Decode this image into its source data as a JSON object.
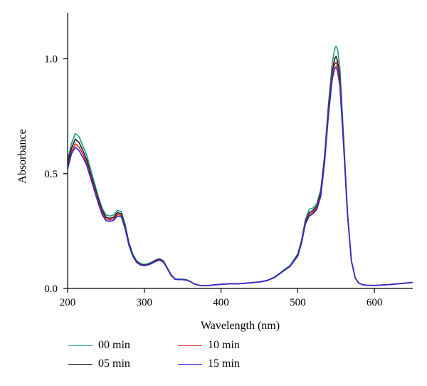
{
  "chart_data": {
    "type": "line",
    "title": "",
    "xlabel": "Wavelength (nm)",
    "ylabel": "Absorbance",
    "xlim": [
      200,
      650
    ],
    "ylim": [
      0,
      1.2
    ],
    "x_ticks": [
      200,
      300,
      400,
      500,
      600
    ],
    "x_tick_labels": [
      "200",
      "300",
      "400",
      "500",
      "600"
    ],
    "y_ticks": [
      0,
      0.5,
      1.0
    ],
    "y_tick_labels": [
      "0.0",
      "0.5",
      "1.0"
    ],
    "grid": false,
    "legend_position": "bottom-left",
    "series": [
      {
        "name": "00 min",
        "color": "#1a9a8a",
        "x": [
          200,
          205,
          210,
          215,
          220,
          225,
          230,
          235,
          240,
          245,
          250,
          255,
          260,
          265,
          270,
          275,
          280,
          285,
          290,
          295,
          300,
          305,
          310,
          315,
          320,
          325,
          330,
          335,
          340,
          345,
          350,
          355,
          360,
          365,
          370,
          375,
          380,
          385,
          390,
          400,
          410,
          420,
          430,
          440,
          450,
          460,
          470,
          480,
          490,
          500,
          505,
          510,
          515,
          520,
          525,
          530,
          535,
          540,
          545,
          548,
          550,
          552,
          555,
          560,
          565,
          570,
          575,
          580,
          585,
          590,
          600,
          610,
          620,
          630,
          640,
          650
        ],
        "values": [
          0.56,
          0.63,
          0.675,
          0.66,
          0.62,
          0.58,
          0.52,
          0.46,
          0.4,
          0.35,
          0.32,
          0.315,
          0.32,
          0.34,
          0.335,
          0.28,
          0.2,
          0.15,
          0.12,
          0.108,
          0.105,
          0.108,
          0.115,
          0.125,
          0.13,
          0.12,
          0.09,
          0.06,
          0.042,
          0.04,
          0.04,
          0.038,
          0.03,
          0.02,
          0.015,
          0.012,
          0.012,
          0.013,
          0.015,
          0.018,
          0.02,
          0.02,
          0.022,
          0.025,
          0.028,
          0.035,
          0.05,
          0.075,
          0.1,
          0.15,
          0.21,
          0.3,
          0.345,
          0.35,
          0.37,
          0.43,
          0.58,
          0.8,
          0.98,
          1.04,
          1.055,
          1.04,
          0.96,
          0.65,
          0.33,
          0.12,
          0.045,
          0.022,
          0.016,
          0.014,
          0.013,
          0.015,
          0.017,
          0.02,
          0.023,
          0.026
        ]
      },
      {
        "name": "05 min",
        "color": "#1a1a1a",
        "x": [
          200,
          205,
          210,
          215,
          220,
          225,
          230,
          235,
          240,
          245,
          250,
          255,
          260,
          265,
          270,
          275,
          280,
          285,
          290,
          295,
          300,
          305,
          310,
          315,
          320,
          325,
          330,
          335,
          340,
          345,
          350,
          355,
          360,
          365,
          370,
          375,
          380,
          385,
          390,
          400,
          410,
          420,
          430,
          440,
          450,
          460,
          470,
          480,
          490,
          500,
          505,
          510,
          515,
          520,
          525,
          530,
          535,
          540,
          545,
          548,
          550,
          552,
          555,
          560,
          565,
          570,
          575,
          580,
          585,
          590,
          600,
          610,
          620,
          630,
          640,
          650
        ],
        "values": [
          0.545,
          0.61,
          0.65,
          0.635,
          0.6,
          0.56,
          0.5,
          0.445,
          0.39,
          0.34,
          0.31,
          0.305,
          0.31,
          0.33,
          0.325,
          0.27,
          0.195,
          0.145,
          0.118,
          0.105,
          0.102,
          0.105,
          0.112,
          0.122,
          0.127,
          0.118,
          0.088,
          0.058,
          0.041,
          0.039,
          0.039,
          0.037,
          0.03,
          0.02,
          0.015,
          0.012,
          0.012,
          0.013,
          0.015,
          0.018,
          0.02,
          0.02,
          0.022,
          0.025,
          0.028,
          0.034,
          0.049,
          0.073,
          0.098,
          0.145,
          0.205,
          0.29,
          0.33,
          0.34,
          0.36,
          0.42,
          0.565,
          0.78,
          0.94,
          1.0,
          1.01,
          0.99,
          0.92,
          0.63,
          0.32,
          0.12,
          0.045,
          0.022,
          0.016,
          0.014,
          0.013,
          0.015,
          0.017,
          0.02,
          0.023,
          0.026
        ]
      },
      {
        "name": "10 min",
        "color": "#e02020",
        "x": [
          200,
          205,
          210,
          215,
          220,
          225,
          230,
          235,
          240,
          245,
          250,
          255,
          260,
          265,
          270,
          275,
          280,
          285,
          290,
          295,
          300,
          305,
          310,
          315,
          320,
          325,
          330,
          335,
          340,
          345,
          350,
          355,
          360,
          365,
          370,
          375,
          380,
          385,
          390,
          400,
          410,
          420,
          430,
          440,
          450,
          460,
          470,
          480,
          490,
          500,
          505,
          510,
          515,
          520,
          525,
          530,
          535,
          540,
          545,
          548,
          550,
          552,
          555,
          560,
          565,
          570,
          575,
          580,
          585,
          590,
          600,
          610,
          620,
          630,
          640,
          650
        ],
        "values": [
          0.53,
          0.595,
          0.63,
          0.615,
          0.585,
          0.545,
          0.49,
          0.435,
          0.38,
          0.33,
          0.302,
          0.298,
          0.303,
          0.322,
          0.318,
          0.265,
          0.19,
          0.142,
          0.115,
          0.103,
          0.1,
          0.103,
          0.11,
          0.12,
          0.125,
          0.116,
          0.087,
          0.057,
          0.04,
          0.038,
          0.038,
          0.036,
          0.03,
          0.02,
          0.015,
          0.012,
          0.012,
          0.013,
          0.015,
          0.018,
          0.02,
          0.02,
          0.022,
          0.025,
          0.028,
          0.034,
          0.048,
          0.072,
          0.097,
          0.142,
          0.2,
          0.285,
          0.322,
          0.332,
          0.352,
          0.41,
          0.555,
          0.765,
          0.925,
          0.975,
          0.985,
          0.965,
          0.9,
          0.62,
          0.32,
          0.12,
          0.045,
          0.022,
          0.016,
          0.014,
          0.013,
          0.015,
          0.017,
          0.02,
          0.023,
          0.026
        ]
      },
      {
        "name": "15 min",
        "color": "#2a2ad6",
        "x": [
          200,
          205,
          210,
          215,
          220,
          225,
          230,
          235,
          240,
          245,
          250,
          255,
          260,
          265,
          270,
          275,
          280,
          285,
          290,
          295,
          300,
          305,
          310,
          315,
          320,
          325,
          330,
          335,
          340,
          345,
          350,
          355,
          360,
          365,
          370,
          375,
          380,
          385,
          390,
          400,
          410,
          420,
          430,
          440,
          450,
          460,
          470,
          480,
          490,
          500,
          505,
          510,
          515,
          520,
          525,
          530,
          535,
          540,
          545,
          548,
          550,
          552,
          555,
          560,
          565,
          570,
          575,
          580,
          585,
          590,
          600,
          610,
          620,
          630,
          640,
          650
        ],
        "values": [
          0.52,
          0.585,
          0.615,
          0.6,
          0.57,
          0.535,
          0.48,
          0.425,
          0.37,
          0.322,
          0.295,
          0.292,
          0.297,
          0.315,
          0.312,
          0.26,
          0.187,
          0.14,
          0.113,
          0.102,
          0.099,
          0.102,
          0.109,
          0.118,
          0.123,
          0.114,
          0.086,
          0.056,
          0.04,
          0.038,
          0.038,
          0.036,
          0.03,
          0.02,
          0.015,
          0.012,
          0.012,
          0.013,
          0.015,
          0.018,
          0.02,
          0.02,
          0.022,
          0.025,
          0.028,
          0.034,
          0.048,
          0.072,
          0.096,
          0.14,
          0.197,
          0.28,
          0.315,
          0.325,
          0.345,
          0.4,
          0.545,
          0.75,
          0.91,
          0.955,
          0.965,
          0.945,
          0.88,
          0.61,
          0.315,
          0.12,
          0.045,
          0.022,
          0.016,
          0.014,
          0.013,
          0.015,
          0.017,
          0.02,
          0.023,
          0.026
        ]
      }
    ]
  }
}
